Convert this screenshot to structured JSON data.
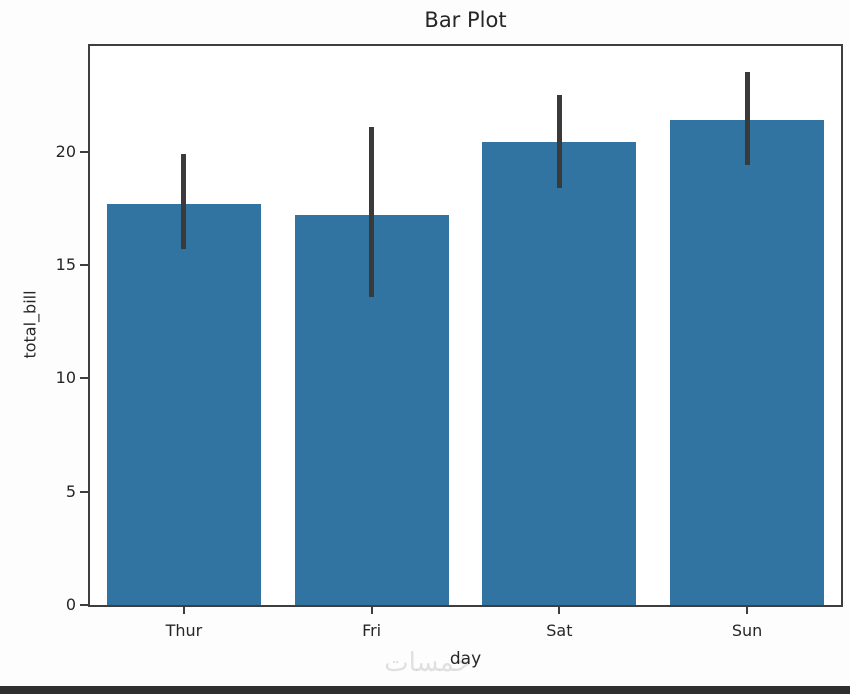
{
  "window": {
    "background_color": "#fdfdfd",
    "bottom_bar_color": "#2f2f2f"
  },
  "watermark": {
    "text": "خمسات"
  },
  "chart_data": {
    "type": "bar",
    "title": "Bar Plot",
    "xlabel": "day",
    "ylabel": "total_bill",
    "categories": [
      "Thur",
      "Fri",
      "Sat",
      "Sun"
    ],
    "values": [
      17.7,
      17.2,
      20.4,
      21.4
    ],
    "error_bars": {
      "low": [
        15.7,
        13.6,
        18.4,
        19.4
      ],
      "high": [
        19.9,
        21.1,
        22.5,
        23.5
      ]
    },
    "yticks": [
      0,
      5,
      10,
      15,
      20
    ],
    "ylim": [
      0,
      24.65
    ],
    "bar_color": "#3173a1",
    "error_color": "#3a3a3a",
    "grid": false,
    "legend_position": "none"
  }
}
